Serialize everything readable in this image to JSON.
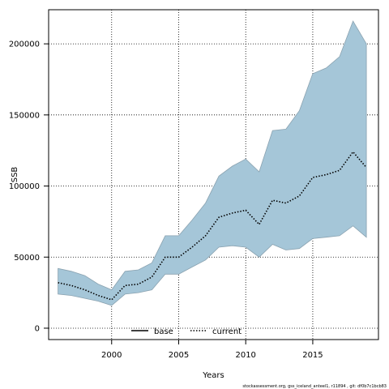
{
  "chart_data": {
    "type": "line",
    "xlabel": "Years",
    "ylabel": "SSB",
    "xlim": [
      1995.3,
      2019.9
    ],
    "ylim": [
      -8000,
      224000
    ],
    "x_ticks": [
      2000,
      2005,
      2010,
      2015
    ],
    "y_ticks": [
      0,
      50000,
      100000,
      150000,
      200000
    ],
    "x_tick_labels": [
      "2000",
      "2005",
      "2010",
      "2015"
    ],
    "y_tick_labels": [
      "0",
      "50000",
      "100000",
      "150000",
      "200000"
    ],
    "grid": true,
    "legend_placement": "bottom",
    "x": [
      1996,
      1997,
      1998,
      1999,
      2000,
      2001,
      2002,
      2003,
      2004,
      2005,
      2006,
      2007,
      2008,
      2009,
      2010,
      2011,
      2012,
      2013,
      2014,
      2015,
      2016,
      2017,
      2018,
      2019
    ],
    "series": [
      {
        "name": "current",
        "style": "dotted",
        "color": "#000000",
        "values": [
          32000,
          30000,
          27000,
          23000,
          20000,
          30000,
          31000,
          36000,
          50000,
          50000,
          57000,
          65000,
          78000,
          81000,
          83000,
          73000,
          90000,
          88000,
          93000,
          106000,
          108000,
          111000,
          124000,
          113000
        ]
      }
    ],
    "band": {
      "color": "#a5c6d8",
      "edge_color": "#8aa2b0",
      "upper": [
        42000,
        40000,
        37000,
        31000,
        27000,
        40000,
        41000,
        46000,
        65000,
        65000,
        76000,
        88000,
        107000,
        114000,
        119000,
        110000,
        139000,
        140000,
        153000,
        179000,
        183000,
        191000,
        216000,
        200000
      ],
      "lower": [
        24000,
        23000,
        21000,
        19000,
        16000,
        24000,
        25000,
        27000,
        38000,
        38000,
        43000,
        48000,
        57000,
        58000,
        57000,
        50000,
        59000,
        55000,
        56000,
        63000,
        64000,
        65000,
        72000,
        64000
      ]
    },
    "legend": [
      {
        "label": "base",
        "style": "solid"
      },
      {
        "label": "current",
        "style": "dotted"
      }
    ],
    "footer": "stockassessment.org, gss_iceland_anteel1, r11894 , git: df0b7c1bcb83"
  }
}
